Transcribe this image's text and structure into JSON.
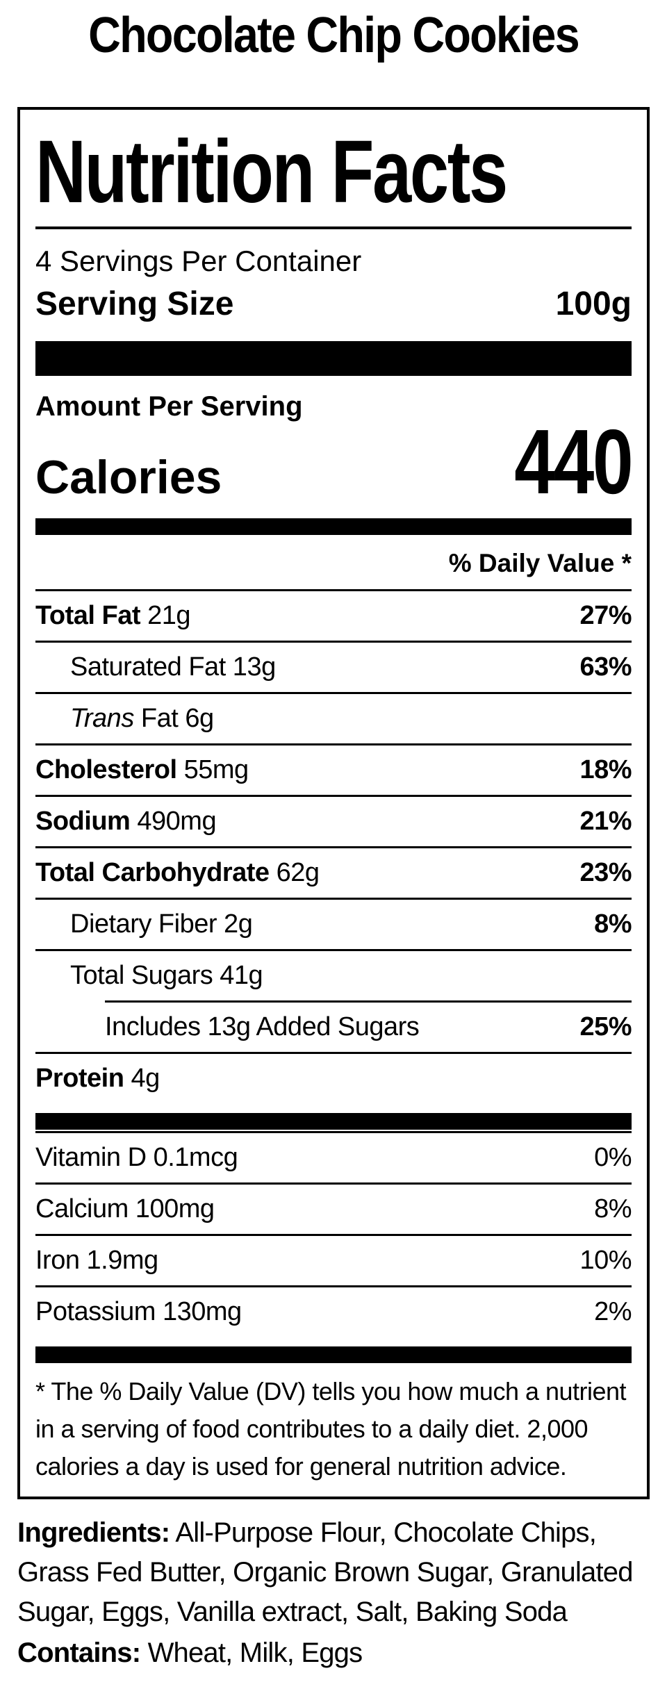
{
  "page_title": "Chocolate Chip Cookies",
  "label": {
    "title": "Nutrition Facts",
    "servings_per_container": "4 Servings Per Container",
    "serving_size": {
      "label": "Serving Size",
      "value": "100g"
    },
    "amount_per_serving": "Amount Per Serving",
    "calories": {
      "label": "Calories",
      "value": "440"
    },
    "daily_value_header": "% Daily Value *",
    "nutrients": [
      {
        "name": "Total Fat",
        "amount": "21g",
        "dv": "27%",
        "bold_name": true,
        "bold_dv": true,
        "indent": 0,
        "sep": "full"
      },
      {
        "name": "Saturated Fat",
        "amount": "13g",
        "dv": "63%",
        "bold_name": false,
        "bold_dv": true,
        "indent": 1,
        "sep": "full"
      },
      {
        "name_italic": "Trans",
        "name": "Fat",
        "amount": "6g",
        "dv": "",
        "bold_name": false,
        "bold_dv": false,
        "indent": 1,
        "sep": "full"
      },
      {
        "name": "Cholesterol",
        "amount": "55mg",
        "dv": "18%",
        "bold_name": true,
        "bold_dv": true,
        "indent": 0,
        "sep": "full"
      },
      {
        "name": "Sodium",
        "amount": "490mg",
        "dv": "21%",
        "bold_name": true,
        "bold_dv": true,
        "indent": 0,
        "sep": "full"
      },
      {
        "name": "Total Carbohydrate",
        "amount": "62g",
        "dv": "23%",
        "bold_name": true,
        "bold_dv": true,
        "indent": 0,
        "sep": "full"
      },
      {
        "name": "Dietary Fiber",
        "amount": "2g",
        "dv": "8%",
        "bold_name": false,
        "bold_dv": true,
        "indent": 1,
        "sep": "full"
      },
      {
        "name": "Total Sugars",
        "amount": "41g",
        "dv": "",
        "bold_name": false,
        "bold_dv": false,
        "indent": 1,
        "sep": "indent"
      },
      {
        "name": "Includes 13g Added Sugars",
        "amount": "",
        "dv": "25%",
        "bold_name": false,
        "bold_dv": true,
        "indent": 2,
        "sep": "full"
      },
      {
        "name": "Protein",
        "amount": "4g",
        "dv": "",
        "bold_name": true,
        "bold_dv": false,
        "indent": 0,
        "sep": "none"
      }
    ],
    "vitamins": [
      {
        "name": "Vitamin D",
        "amount": "0.1mcg",
        "dv": "0%",
        "sep": "full"
      },
      {
        "name": "Calcium",
        "amount": "100mg",
        "dv": "8%",
        "sep": "full"
      },
      {
        "name": "Iron",
        "amount": "1.9mg",
        "dv": "10%",
        "sep": "full"
      },
      {
        "name": "Potassium",
        "amount": "130mg",
        "dv": "2%",
        "sep": "none"
      }
    ],
    "footnote": "* The % Daily Value (DV) tells you how much a nutrient in a serving of food contributes to a daily diet. 2,000 calories a day is used for general nutrition advice."
  },
  "ingredients": {
    "label": "Ingredients:",
    "text": "All-Purpose Flour, Chocolate Chips, Grass Fed Butter, Organic Brown Sugar, Granulated Sugar, Eggs, Vanilla extract, Salt, Baking Soda"
  },
  "contains": {
    "label": "Contains:",
    "text": "Wheat, Milk, Eggs"
  },
  "colors": {
    "text": "#000000",
    "background": "#ffffff"
  }
}
